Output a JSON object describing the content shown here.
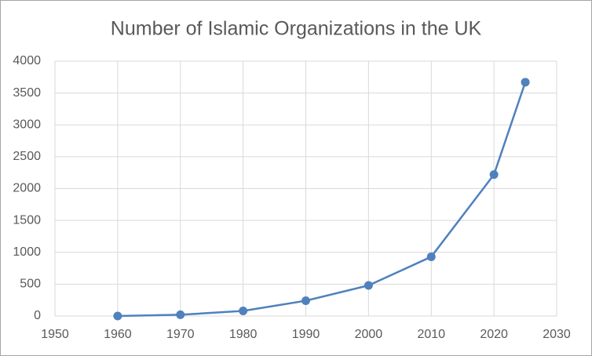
{
  "chart_data": {
    "type": "line",
    "title": "Number of Islamic Organizations in the UK",
    "x": [
      1960,
      1970,
      1980,
      1990,
      2000,
      2010,
      2020,
      2025
    ],
    "series": [
      {
        "name": "Islamic Organizations",
        "color": "#4f81bd",
        "values": [
          0,
          20,
          80,
          240,
          480,
          930,
          2220,
          3670
        ]
      }
    ],
    "xlim": [
      1950,
      2030
    ],
    "xticks": [
      1950,
      1960,
      1970,
      1980,
      1990,
      2000,
      2010,
      2020,
      2030
    ],
    "ylim": [
      0,
      4000
    ],
    "yticks": [
      0,
      500,
      1000,
      1500,
      2000,
      2500,
      3000,
      3500,
      4000
    ],
    "grid": true
  }
}
